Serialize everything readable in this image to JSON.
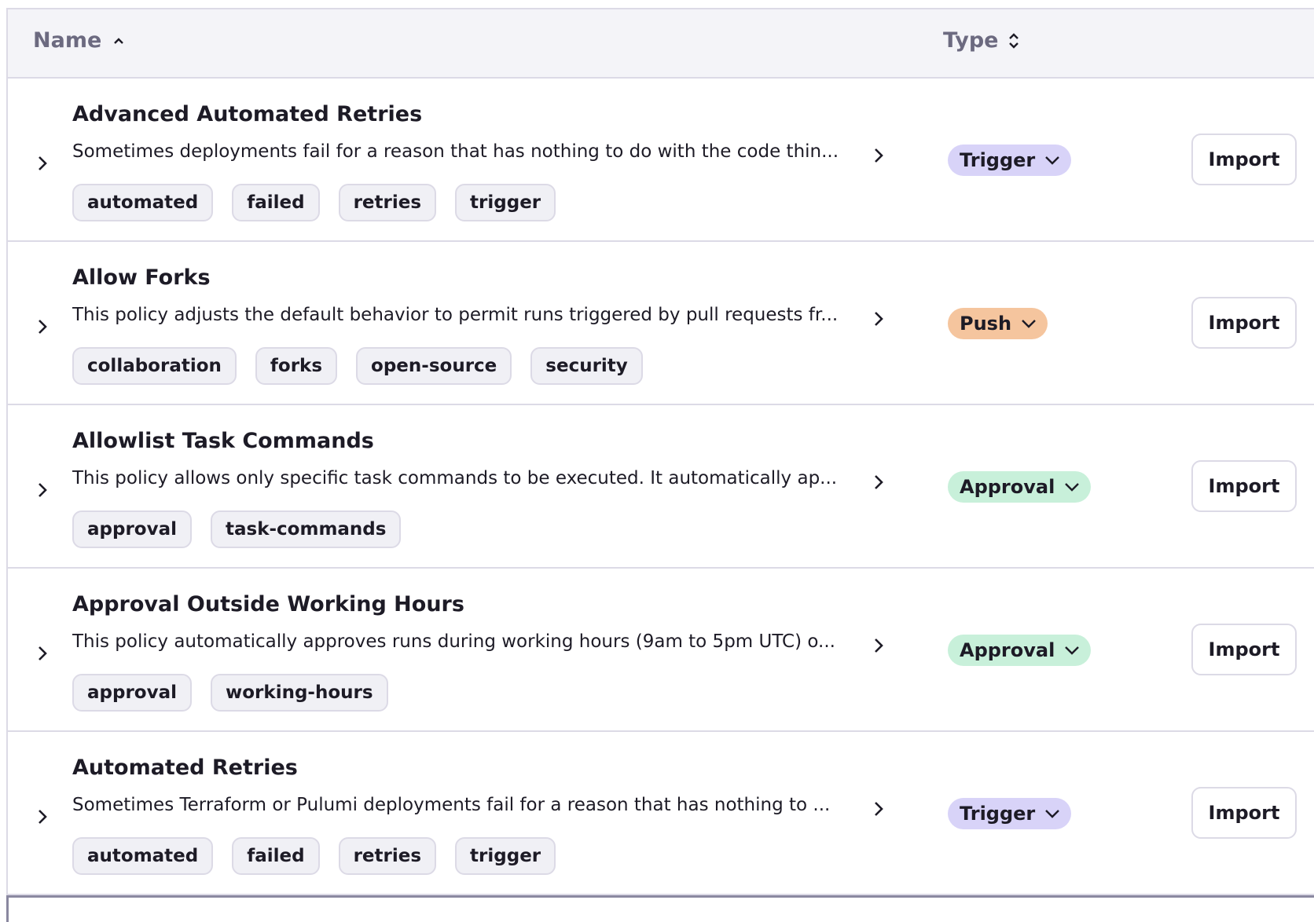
{
  "header": {
    "name_label": "Name",
    "name_sort": "ascending",
    "type_label": "Type",
    "type_sort": "unsorted"
  },
  "colors": {
    "Trigger": "#d8d3f8",
    "Push": "#f5c59e",
    "Approval": "#c8f0da"
  },
  "rows": [
    {
      "title": "Advanced Automated Retries",
      "description": "Sometimes deployments fail for a reason that has nothing to do with the code thin...",
      "tags": [
        "automated",
        "failed",
        "retries",
        "trigger"
      ],
      "type": "Trigger",
      "action": "Import"
    },
    {
      "title": "Allow Forks",
      "description": "This policy adjusts the default behavior to permit runs triggered by pull requests fr...",
      "tags": [
        "collaboration",
        "forks",
        "open-source",
        "security"
      ],
      "type": "Push",
      "action": "Import"
    },
    {
      "title": "Allowlist Task Commands",
      "description": "This policy allows only specific task commands to be executed. It automatically ap...",
      "tags": [
        "approval",
        "task-commands"
      ],
      "type": "Approval",
      "action": "Import"
    },
    {
      "title": "Approval Outside Working Hours",
      "description": "This policy automatically approves runs during working hours (9am to 5pm UTC) o...",
      "tags": [
        "approval",
        "working-hours"
      ],
      "type": "Approval",
      "action": "Import"
    },
    {
      "title": "Automated Retries",
      "description": "Sometimes Terraform or Pulumi deployments fail for a reason that has nothing to ...",
      "tags": [
        "automated",
        "failed",
        "retries",
        "trigger"
      ],
      "type": "Trigger",
      "action": "Import"
    }
  ]
}
